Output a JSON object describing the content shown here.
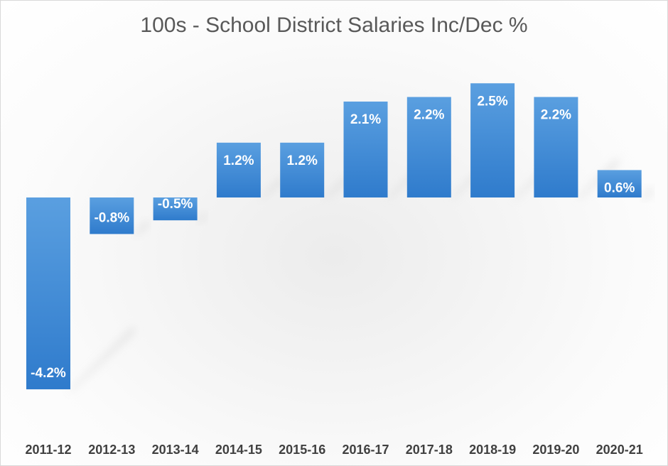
{
  "chart_data": {
    "type": "bar",
    "title": "100s - School District Salaries Inc/Dec %",
    "categories": [
      "2011-12",
      "2012-13",
      "2013-14",
      "2014-15",
      "2015-16",
      "2016-17",
      "2017-18",
      "2018-19",
      "2019-20",
      "2020-21"
    ],
    "values": [
      -4.2,
      -0.8,
      -0.5,
      1.2,
      1.2,
      2.1,
      2.2,
      2.5,
      2.2,
      0.6
    ],
    "data_labels": [
      "-4.2%",
      "-0.8%",
      "-0.5%",
      "1.2%",
      "1.2%",
      "2.1%",
      "2.2%",
      "2.5%",
      "2.2%",
      "0.6%"
    ],
    "xlabel": "",
    "ylabel": "",
    "ylim": [
      -4.5,
      2.6
    ],
    "grid": false,
    "legend": "none",
    "bar_color": "#3a87d4"
  }
}
